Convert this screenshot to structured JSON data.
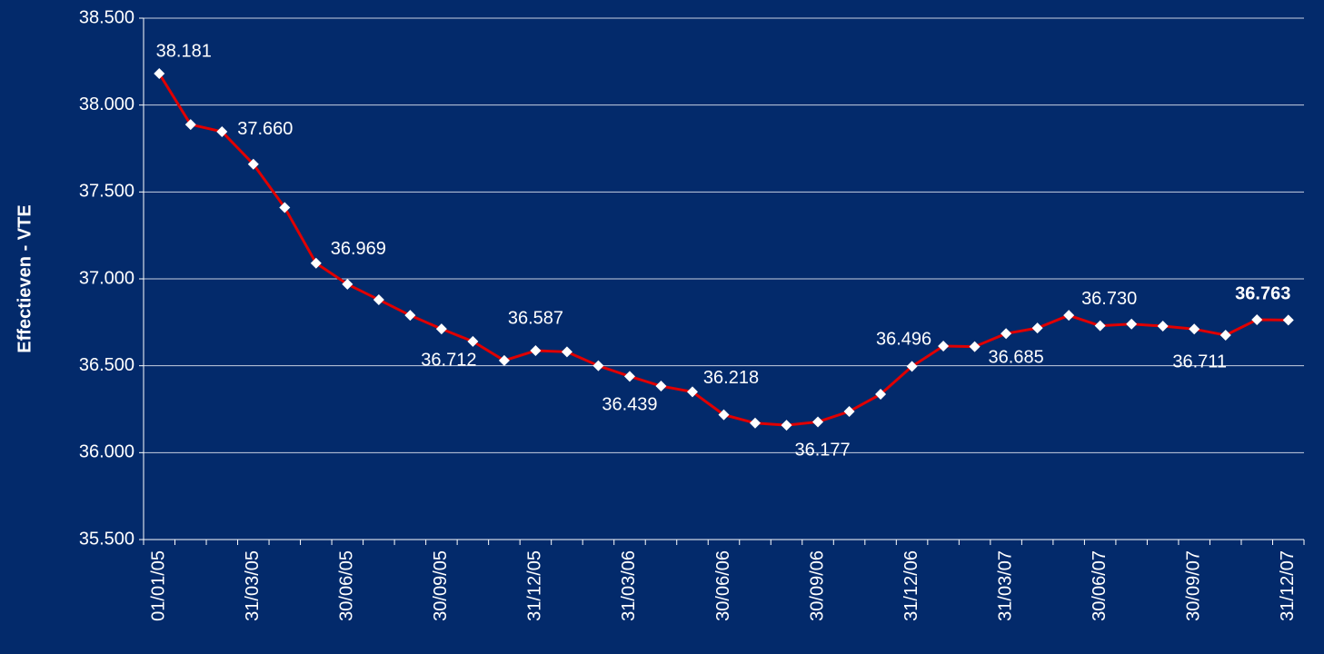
{
  "chart_data": {
    "type": "line",
    "ylabel": "Effectieven - VTE",
    "categories": [
      "01/01/05",
      null,
      null,
      "31/03/05",
      null,
      null,
      "30/06/05",
      null,
      null,
      "30/09/05",
      null,
      null,
      "31/12/05",
      null,
      null,
      "31/03/06",
      null,
      null,
      "30/06/06",
      null,
      null,
      "30/09/06",
      null,
      null,
      "31/12/06",
      null,
      null,
      "31/03/07",
      null,
      null,
      "30/06/07",
      null,
      null,
      "30/09/07",
      null,
      null,
      "31/12/07"
    ],
    "series": [
      {
        "name": "Effectieven",
        "color": "#e00000",
        "values": [
          38181,
          37888,
          37847,
          37660,
          37410,
          37090,
          36969,
          36880,
          36790,
          36712,
          36640,
          36530,
          36587,
          36580,
          36500,
          36439,
          36383,
          36350,
          36218,
          36170,
          36158,
          36177,
          36237,
          36336,
          36496,
          36613,
          36610,
          36685,
          36717,
          36790,
          36730,
          36740,
          36728,
          36711,
          36676,
          36765,
          36763
        ],
        "value_labels": [
          "38.181",
          null,
          null,
          "37.660",
          null,
          null,
          "36.969",
          null,
          null,
          "36.712",
          null,
          null,
          "36.587",
          null,
          null,
          "36.439",
          null,
          null,
          "36.218",
          null,
          null,
          "36.177",
          null,
          null,
          "36.496",
          null,
          null,
          "36.685",
          null,
          null,
          "36.730",
          null,
          null,
          "36.711",
          null,
          null,
          "36.763"
        ]
      }
    ],
    "ylim": [
      35500,
      38500
    ],
    "yticks": [
      {
        "value": 35500,
        "label": "35.500"
      },
      {
        "value": 36000,
        "label": "36.000"
      },
      {
        "value": 36500,
        "label": "36.500"
      },
      {
        "value": 37000,
        "label": "37.000"
      },
      {
        "value": 37500,
        "label": "37.500"
      },
      {
        "value": 38000,
        "label": "38.000"
      },
      {
        "value": 38500,
        "label": "38.500"
      }
    ],
    "grid": true
  }
}
